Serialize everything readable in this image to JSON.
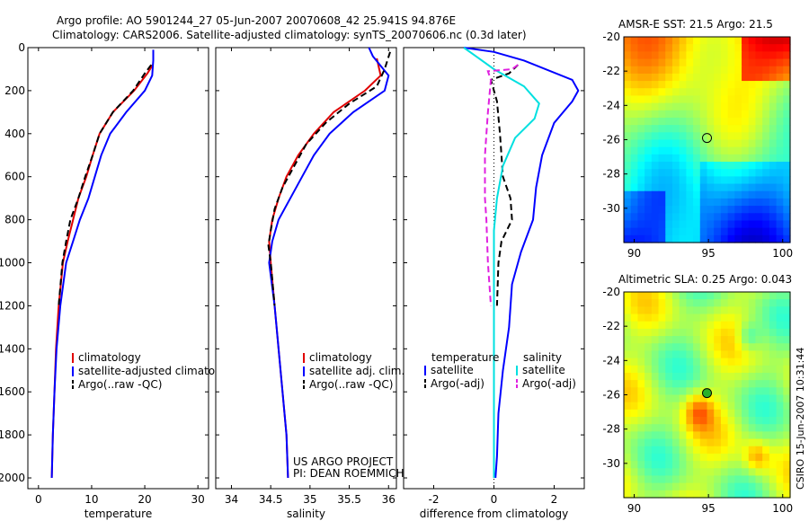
{
  "header": {
    "line1": "Argo profile: AO 5901244_27 05-Jun-2007 20070608_42 25.941S 94.876E",
    "line2": "Climatology: CARS2006. Satellite-adjusted climatology: synTS_20070606.nc (0.3d later)"
  },
  "side_label": "CSIRO 15-Jun-2007 10:31:44",
  "colors": {
    "climatology": "#e00000",
    "satellite": "#0000ff",
    "argo": "#000000",
    "salinity_sat": "#00e0e0",
    "salinity_argo": "#e020e0"
  },
  "chart_data": [
    {
      "type": "line",
      "xlabel": "temperature",
      "xlim": [
        -2,
        32
      ],
      "ylim": [
        0,
        2050
      ],
      "y_inverted": true,
      "xticks": [
        "0",
        "10",
        "20",
        "30"
      ],
      "yticks": [
        "0",
        "200",
        "400",
        "600",
        "800",
        "1000",
        "1200",
        "1400",
        "1600",
        "1800",
        "2000"
      ],
      "legend": [
        "climatology",
        "satellite-adjusted climatology",
        "Argo(..raw -QC)"
      ],
      "series": [
        {
          "name": "climatology",
          "color": "#e00000",
          "style": "solid",
          "points": [
            [
              21.5,
              80
            ],
            [
              20.5,
              120
            ],
            [
              18,
              200
            ],
            [
              14,
              300
            ],
            [
              11.5,
              400
            ],
            [
              10.2,
              500
            ],
            [
              9,
              600
            ],
            [
              7.5,
              700
            ],
            [
              6.5,
              800
            ],
            [
              5.5,
              900
            ],
            [
              4.6,
              1000
            ],
            [
              3.8,
              1200
            ],
            [
              3.3,
              1400
            ],
            [
              3,
              1600
            ],
            [
              2.7,
              1800
            ],
            [
              2.5,
              2000
            ]
          ]
        },
        {
          "name": "satellite-adjusted climatology",
          "color": "#0000ff",
          "style": "solid",
          "points": [
            [
              21.6,
              10
            ],
            [
              21.6,
              60
            ],
            [
              21.4,
              130
            ],
            [
              20,
              200
            ],
            [
              16.5,
              300
            ],
            [
              13.5,
              400
            ],
            [
              11.8,
              500
            ],
            [
              10.6,
              600
            ],
            [
              9.4,
              700
            ],
            [
              7.8,
              800
            ],
            [
              6.5,
              900
            ],
            [
              5.2,
              1000
            ],
            [
              4.1,
              1200
            ],
            [
              3.4,
              1400
            ],
            [
              3,
              1600
            ],
            [
              2.7,
              1800
            ],
            [
              2.5,
              2000
            ]
          ]
        },
        {
          "name": "Argo(..raw -QC)",
          "color": "#000000",
          "style": "dashed",
          "points": [
            [
              21.2,
              80
            ],
            [
              20,
              120
            ],
            [
              17.8,
              200
            ],
            [
              14,
              300
            ],
            [
              11.5,
              400
            ],
            [
              10.2,
              500
            ],
            [
              8.8,
              600
            ],
            [
              7.5,
              700
            ],
            [
              6,
              800
            ],
            [
              5.2,
              900
            ],
            [
              4.5,
              1000
            ],
            [
              3.8,
              1200
            ]
          ]
        }
      ]
    },
    {
      "type": "line",
      "xlabel": "salinity",
      "xlim": [
        33.8,
        36.1
      ],
      "ylim": [
        0,
        2050
      ],
      "y_inverted": true,
      "xticks": [
        "34",
        "34.5",
        "35",
        "35.5",
        "36"
      ],
      "legend": [
        "climatology",
        "satellite adj. clim.",
        "Argo(..raw -QC)"
      ],
      "annotation": [
        "US ARGO PROJECT",
        "PI: DEAN ROEMMICH"
      ],
      "series": [
        {
          "name": "climatology",
          "color": "#e00000",
          "style": "solid",
          "points": [
            [
              35.85,
              50
            ],
            [
              35.9,
              130
            ],
            [
              35.7,
              200
            ],
            [
              35.3,
              300
            ],
            [
              35.05,
              400
            ],
            [
              34.85,
              500
            ],
            [
              34.7,
              600
            ],
            [
              34.6,
              700
            ],
            [
              34.52,
              800
            ],
            [
              34.48,
              900
            ],
            [
              34.5,
              1000
            ],
            [
              34.55,
              1200
            ],
            [
              34.6,
              1400
            ],
            [
              34.65,
              1600
            ],
            [
              34.7,
              1800
            ],
            [
              34.72,
              2000
            ]
          ]
        },
        {
          "name": "satellite adj. clim.",
          "color": "#0000ff",
          "style": "solid",
          "points": [
            [
              35.75,
              0
            ],
            [
              35.8,
              40
            ],
            [
              36,
              130
            ],
            [
              35.95,
              200
            ],
            [
              35.55,
              300
            ],
            [
              35.25,
              400
            ],
            [
              35.05,
              500
            ],
            [
              34.9,
              600
            ],
            [
              34.75,
              700
            ],
            [
              34.6,
              800
            ],
            [
              34.52,
              900
            ],
            [
              34.48,
              1000
            ],
            [
              34.55,
              1200
            ],
            [
              34.6,
              1400
            ],
            [
              34.65,
              1600
            ],
            [
              34.7,
              1800
            ],
            [
              34.72,
              2000
            ]
          ]
        },
        {
          "name": "Argo(..raw -QC)",
          "color": "#000000",
          "style": "dashed",
          "points": [
            [
              36.02,
              20
            ],
            [
              35.95,
              100
            ],
            [
              35.85,
              180
            ],
            [
              35.5,
              260
            ],
            [
              35.2,
              350
            ],
            [
              34.95,
              450
            ],
            [
              34.8,
              550
            ],
            [
              34.65,
              650
            ],
            [
              34.55,
              750
            ],
            [
              34.5,
              850
            ],
            [
              34.47,
              920
            ],
            [
              34.5,
              1000
            ],
            [
              34.55,
              1200
            ]
          ]
        }
      ]
    },
    {
      "type": "line",
      "xlabel": "difference from climatology",
      "xlim": [
        -3,
        3
      ],
      "ylim": [
        0,
        2050
      ],
      "y_inverted": true,
      "xticks": [
        "-2",
        "0",
        "2"
      ],
      "legend_titles": [
        "temperature",
        "salinity"
      ],
      "legend": [
        "satellite",
        "Argo(-adj)",
        "satellite",
        "Argo(-adj)"
      ],
      "series": [
        {
          "name": "temperature satellite",
          "color": "#0000ff",
          "style": "solid",
          "points": [
            [
              -1,
              0
            ],
            [
              0,
              20
            ],
            [
              1,
              60
            ],
            [
              2.6,
              150
            ],
            [
              2.8,
              200
            ],
            [
              2.6,
              250
            ],
            [
              2,
              350
            ],
            [
              1.6,
              500
            ],
            [
              1.4,
              650
            ],
            [
              1.3,
              800
            ],
            [
              0.9,
              950
            ],
            [
              0.6,
              1100
            ],
            [
              0.5,
              1300
            ],
            [
              0.3,
              1500
            ],
            [
              0.15,
              1700
            ],
            [
              0.1,
              1900
            ],
            [
              0.05,
              2000
            ]
          ]
        },
        {
          "name": "temperature Argo(-adj)",
          "color": "#000000",
          "style": "dashed",
          "points": [
            [
              0.8,
              80
            ],
            [
              0.5,
              120
            ],
            [
              -0.1,
              150
            ],
            [
              0.1,
              250
            ],
            [
              0.2,
              400
            ],
            [
              0.3,
              600
            ],
            [
              0.55,
              700
            ],
            [
              0.6,
              800
            ],
            [
              0.25,
              900
            ],
            [
              0.15,
              1000
            ],
            [
              0.1,
              1200
            ]
          ]
        },
        {
          "name": "salinity satellite",
          "color": "#00e0e0",
          "style": "solid",
          "points": [
            [
              -1,
              0
            ],
            [
              -0.6,
              40
            ],
            [
              0,
              100
            ],
            [
              1,
              180
            ],
            [
              1.5,
              260
            ],
            [
              1.35,
              330
            ],
            [
              0.7,
              420
            ],
            [
              0.3,
              550
            ],
            [
              0.1,
              700
            ],
            [
              0,
              850
            ],
            [
              0,
              1000
            ],
            [
              0,
              1200
            ],
            [
              0,
              1400
            ],
            [
              0,
              1600
            ],
            [
              0,
              1800
            ],
            [
              0,
              2000
            ]
          ]
        },
        {
          "name": "salinity Argo(-adj)",
          "color": "#e020e0",
          "style": "dashed",
          "points": [
            [
              0.8,
              80
            ],
            [
              0.6,
              100
            ],
            [
              -0.2,
              110
            ],
            [
              -0.1,
              150
            ],
            [
              -0.2,
              300
            ],
            [
              -0.3,
              500
            ],
            [
              -0.3,
              700
            ],
            [
              -0.25,
              800
            ],
            [
              -0.2,
              1000
            ],
            [
              -0.1,
              1200
            ]
          ]
        }
      ]
    },
    {
      "type": "heatmap",
      "title": "AMSR-E SST: 21.5 Argo: 21.5",
      "xlim": [
        89.3,
        100.5
      ],
      "ylim": [
        -32,
        -20
      ],
      "xticks": [
        "90",
        "95",
        "100"
      ],
      "yticks": [
        "-20",
        "-22",
        "-24",
        "-26",
        "-28",
        "-30"
      ],
      "marker": {
        "lon": 94.9,
        "lat": -25.9,
        "fill": "none"
      }
    },
    {
      "type": "heatmap",
      "title": "Altimetric SLA: 0.25 Argo: 0.043",
      "xlim": [
        89.3,
        100.5
      ],
      "ylim": [
        -32,
        -20
      ],
      "xticks": [
        "90",
        "95",
        "100"
      ],
      "yticks": [
        "-20",
        "-22",
        "-24",
        "-26",
        "-28",
        "-30"
      ],
      "marker": {
        "lon": 94.9,
        "lat": -25.9,
        "fill": "#2ab02a"
      }
    }
  ]
}
